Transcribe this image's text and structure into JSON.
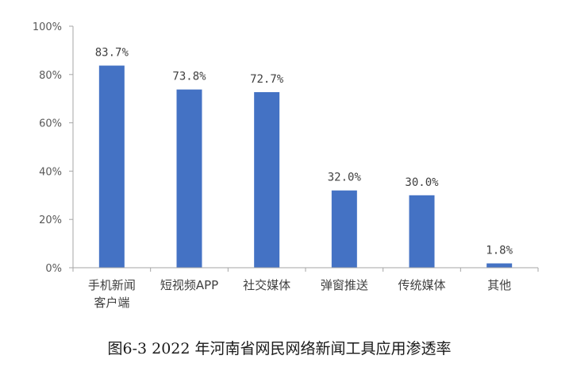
{
  "colors": {
    "bar": "#4472C4",
    "axis": "#a6a6a6",
    "tick_text": "#595959",
    "label_text": "#404040"
  },
  "chart_data": {
    "type": "bar",
    "categories": [
      [
        "手机新闻",
        "客户端"
      ],
      [
        "短视频APP"
      ],
      [
        "社交媒体"
      ],
      [
        "弹窗推送"
      ],
      [
        "传统媒体"
      ],
      [
        "其他"
      ]
    ],
    "values": [
      83.7,
      73.8,
      72.7,
      32.0,
      30.0,
      1.8
    ],
    "data_labels": [
      "83.7%",
      "73.8%",
      "72.7%",
      "32.0%",
      "30.0%",
      "1.8%"
    ],
    "yticks": [
      {
        "value": 0,
        "label": "0%"
      },
      {
        "value": 20,
        "label": "20%"
      },
      {
        "value": 40,
        "label": "40%"
      },
      {
        "value": 60,
        "label": "60%"
      },
      {
        "value": 80,
        "label": "80%"
      },
      {
        "value": 100,
        "label": "100%"
      }
    ],
    "ylim": [
      0,
      100
    ],
    "grid": false,
    "legend": "none",
    "title": "图6-3 2022 年河南省网民网络新闻工具应用渗透率"
  }
}
